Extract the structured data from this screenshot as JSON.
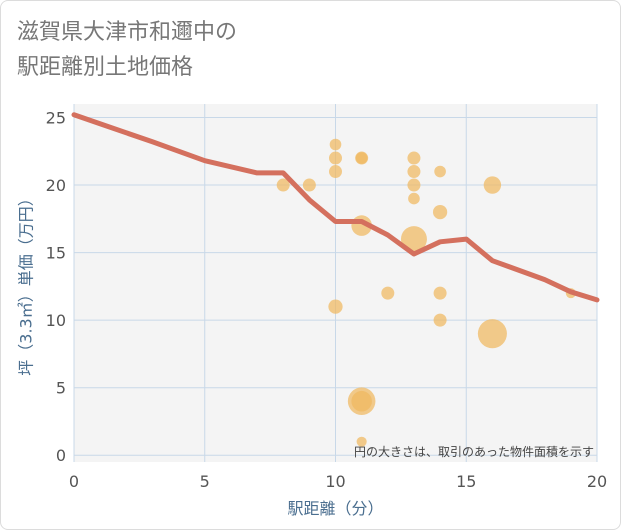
{
  "title_lines": [
    "滋賀県大津市和邇中の",
    "駅距離別土地価格"
  ],
  "chart_data": {
    "type": "scatter",
    "title": "滋賀県大津市和邇中の駅距離別土地価格",
    "xlabel": "駅距離（分）",
    "ylabel": "坪（3.3㎡）単価（万円）",
    "xlim": [
      0,
      20
    ],
    "ylim": [
      -0.5,
      26
    ],
    "xticks": [
      0,
      5,
      10,
      15,
      20
    ],
    "yticks": [
      0,
      5,
      10,
      15,
      20,
      25
    ],
    "grid": true,
    "note": "円の大きさは、取引のあった物件面積を示す",
    "colors": {
      "bubble": "#f0b860",
      "line": "#d4705e",
      "grid": "#c8d8e8",
      "plot_bg": "#f4f4f4"
    },
    "points": [
      {
        "x": 8,
        "y": 20,
        "size": 1
      },
      {
        "x": 9,
        "y": 20,
        "size": 1
      },
      {
        "x": 10,
        "y": 23,
        "size": 0.8
      },
      {
        "x": 10,
        "y": 22,
        "size": 1
      },
      {
        "x": 10,
        "y": 21,
        "size": 1
      },
      {
        "x": 10,
        "y": 11,
        "size": 1.2
      },
      {
        "x": 11,
        "y": 22,
        "size": 1
      },
      {
        "x": 11,
        "y": 22,
        "size": 0.8
      },
      {
        "x": 11,
        "y": 17,
        "size": 2.5
      },
      {
        "x": 11,
        "y": 4,
        "size": 4.5
      },
      {
        "x": 11,
        "y": 4,
        "size": 2.5
      },
      {
        "x": 11,
        "y": 1,
        "size": 0.6
      },
      {
        "x": 12,
        "y": 12,
        "size": 1
      },
      {
        "x": 13,
        "y": 22,
        "size": 1
      },
      {
        "x": 13,
        "y": 21,
        "size": 1
      },
      {
        "x": 13,
        "y": 20,
        "size": 1
      },
      {
        "x": 13,
        "y": 19,
        "size": 0.8
      },
      {
        "x": 13,
        "y": 16,
        "size": 4
      },
      {
        "x": 14,
        "y": 21,
        "size": 0.8
      },
      {
        "x": 14,
        "y": 18,
        "size": 1.2
      },
      {
        "x": 14,
        "y": 12,
        "size": 1
      },
      {
        "x": 14,
        "y": 10,
        "size": 1
      },
      {
        "x": 16,
        "y": 20,
        "size": 1.8
      },
      {
        "x": 16,
        "y": 9,
        "size": 5
      },
      {
        "x": 19,
        "y": 12,
        "size": 0.6
      }
    ],
    "trend": {
      "x": [
        0,
        3,
        5,
        7,
        8,
        9,
        10,
        11,
        12,
        13,
        14,
        15,
        16,
        18,
        19,
        20
      ],
      "y": [
        25.2,
        23.2,
        21.8,
        20.9,
        20.9,
        18.9,
        17.3,
        17.3,
        16.3,
        14.9,
        15.8,
        16.0,
        14.4,
        13.0,
        12.1,
        11.5
      ]
    }
  }
}
